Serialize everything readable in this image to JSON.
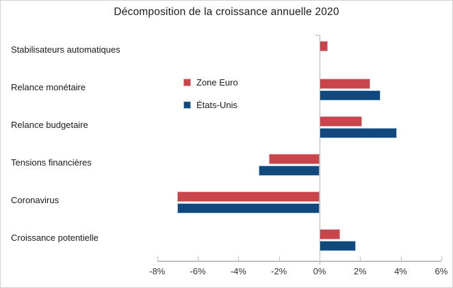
{
  "chart_data": {
    "type": "bar",
    "orientation": "horizontal",
    "title": "Décomposition de la croissance annuelle 2020",
    "categories": [
      "Stabilisateurs automatiques",
      "Relance monétaire",
      "Relance budgetaire",
      "Tensions financières",
      "Coronavirus",
      "Croissance potentielle"
    ],
    "series": [
      {
        "name": "Zone Euro",
        "color": "#c8464b",
        "values": [
          0.4,
          2.5,
          2.1,
          -2.5,
          -7.0,
          1.0
        ]
      },
      {
        "name": "États-Unis",
        "color": "#11497d",
        "values": [
          0.0,
          3.0,
          3.8,
          -3.0,
          -7.0,
          1.8
        ]
      }
    ],
    "xlim": [
      -8,
      6
    ],
    "tick_step": 2,
    "x_tick_labels": [
      "-8%",
      "-6%",
      "-4%",
      "-2%",
      "0%",
      "2%",
      "4%",
      "6%"
    ],
    "unit": "%",
    "legend_position": "inside-upper-center",
    "grid": false,
    "axis_color": "#bfbfbf",
    "background": "#ffffff"
  }
}
